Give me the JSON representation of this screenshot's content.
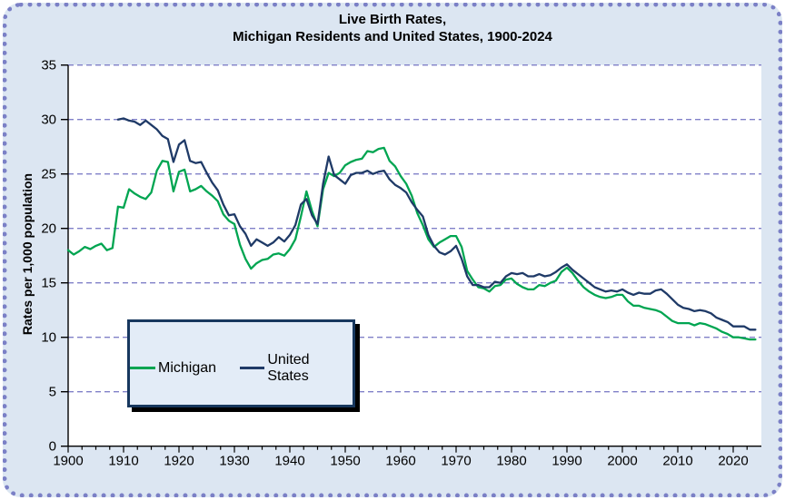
{
  "title": {
    "line1": "Live Birth Rates,",
    "line2": "Michigan Residents and United States, 1900-2024"
  },
  "y_axis": {
    "label": "Rates per 1,000 population",
    "ticks": [
      0,
      5,
      10,
      15,
      20,
      25,
      30,
      35
    ]
  },
  "x_axis": {
    "decade_labels": [
      "1900",
      "1910",
      "1920",
      "1930",
      "1940",
      "1950",
      "1960",
      "1970",
      "1980",
      "1990",
      "2000",
      "2010",
      "2020"
    ],
    "minor_tick_step_years": 2.5,
    "start_year": 1900,
    "end_year": 2024
  },
  "legend": {
    "items": [
      {
        "label": "Michigan",
        "color": "#00a551"
      },
      {
        "label": "United States",
        "color": "#1f3a67"
      }
    ]
  },
  "colors": {
    "card_background": "#dce6f2",
    "plot_background": "#ffffff",
    "gridline": "#8080c8",
    "axis": "#000000",
    "michigan_line": "#00a551",
    "us_line": "#1f3a67",
    "legend_border": "#17375e",
    "legend_shadow": "#000000",
    "outer_border": "#7b80c6"
  },
  "chart_data": {
    "type": "line",
    "title": "Live Birth Rates, Michigan Residents and United States, 1900-2024",
    "xlabel": "",
    "ylabel": "Rates per 1,000 population",
    "ylim": [
      0,
      35
    ],
    "xlim": [
      1900,
      2024
    ],
    "grid": "horizontal-dashed",
    "legend_position": "inside-lower-left",
    "series": [
      {
        "name": "Michigan",
        "color": "#00a551",
        "start_year": 1900,
        "values": [
          18.0,
          17.6,
          17.9,
          18.3,
          18.1,
          18.4,
          18.6,
          18.0,
          18.2,
          22.0,
          21.9,
          23.6,
          23.2,
          22.9,
          22.7,
          23.3,
          25.3,
          26.2,
          26.1,
          23.4,
          25.2,
          25.4,
          23.4,
          23.6,
          23.9,
          23.4,
          23.0,
          22.5,
          21.3,
          20.7,
          20.4,
          18.5,
          17.2,
          16.3,
          16.8,
          17.1,
          17.2,
          17.6,
          17.7,
          17.5,
          18.1,
          19.0,
          21.1,
          23.4,
          21.6,
          20.2,
          23.6,
          25.1,
          24.8,
          25.1,
          25.8,
          26.1,
          26.3,
          26.4,
          27.1,
          27.0,
          27.3,
          27.4,
          26.2,
          25.7,
          24.8,
          24.1,
          23.0,
          21.4,
          20.3,
          19.0,
          18.3,
          18.7,
          19.0,
          19.3,
          19.3,
          18.3,
          16.1,
          15.3,
          14.6,
          14.5,
          14.2,
          14.7,
          14.8,
          15.3,
          15.4,
          14.9,
          14.6,
          14.4,
          14.4,
          14.8,
          14.7,
          15.0,
          15.2,
          16.0,
          16.4,
          15.9,
          15.2,
          14.6,
          14.2,
          13.9,
          13.7,
          13.6,
          13.7,
          13.9,
          13.9,
          13.3,
          12.9,
          12.9,
          12.7,
          12.6,
          12.5,
          12.3,
          11.9,
          11.5,
          11.3,
          11.3,
          11.3,
          11.1,
          11.3,
          11.2,
          11.0,
          10.8,
          10.5,
          10.3,
          10.0,
          10.0,
          9.9,
          9.8,
          9.8
        ]
      },
      {
        "name": "United States",
        "color": "#1f3a67",
        "start_year": 1909,
        "values": [
          30.0,
          30.1,
          29.9,
          29.8,
          29.5,
          29.9,
          29.5,
          29.1,
          28.5,
          28.2,
          26.1,
          27.7,
          28.1,
          26.2,
          26.0,
          26.1,
          25.1,
          24.2,
          23.5,
          22.2,
          21.2,
          21.3,
          20.2,
          19.5,
          18.4,
          19.0,
          18.7,
          18.4,
          18.7,
          19.2,
          18.8,
          19.4,
          20.3,
          22.2,
          22.7,
          21.2,
          20.4,
          24.1,
          26.6,
          24.9,
          24.5,
          24.1,
          24.9,
          25.1,
          25.1,
          25.3,
          25.0,
          25.2,
          25.3,
          24.5,
          24.0,
          23.7,
          23.3,
          22.4,
          21.7,
          21.1,
          19.4,
          18.4,
          17.8,
          17.6,
          17.9,
          18.4,
          17.2,
          15.6,
          14.8,
          14.8,
          14.6,
          14.6,
          15.1,
          15.0,
          15.6,
          15.9,
          15.8,
          15.9,
          15.6,
          15.6,
          15.8,
          15.6,
          15.7,
          16.0,
          16.4,
          16.7,
          16.2,
          15.8,
          15.4,
          15.0,
          14.6,
          14.4,
          14.2,
          14.3,
          14.2,
          14.4,
          14.1,
          13.9,
          14.1,
          14.0,
          14.0,
          14.3,
          14.4,
          14.0,
          13.5,
          13.0,
          12.7,
          12.6,
          12.4,
          12.5,
          12.4,
          12.2,
          11.8,
          11.6,
          11.4,
          11.0,
          11.0,
          11.0,
          10.7,
          10.7
        ]
      }
    ]
  }
}
